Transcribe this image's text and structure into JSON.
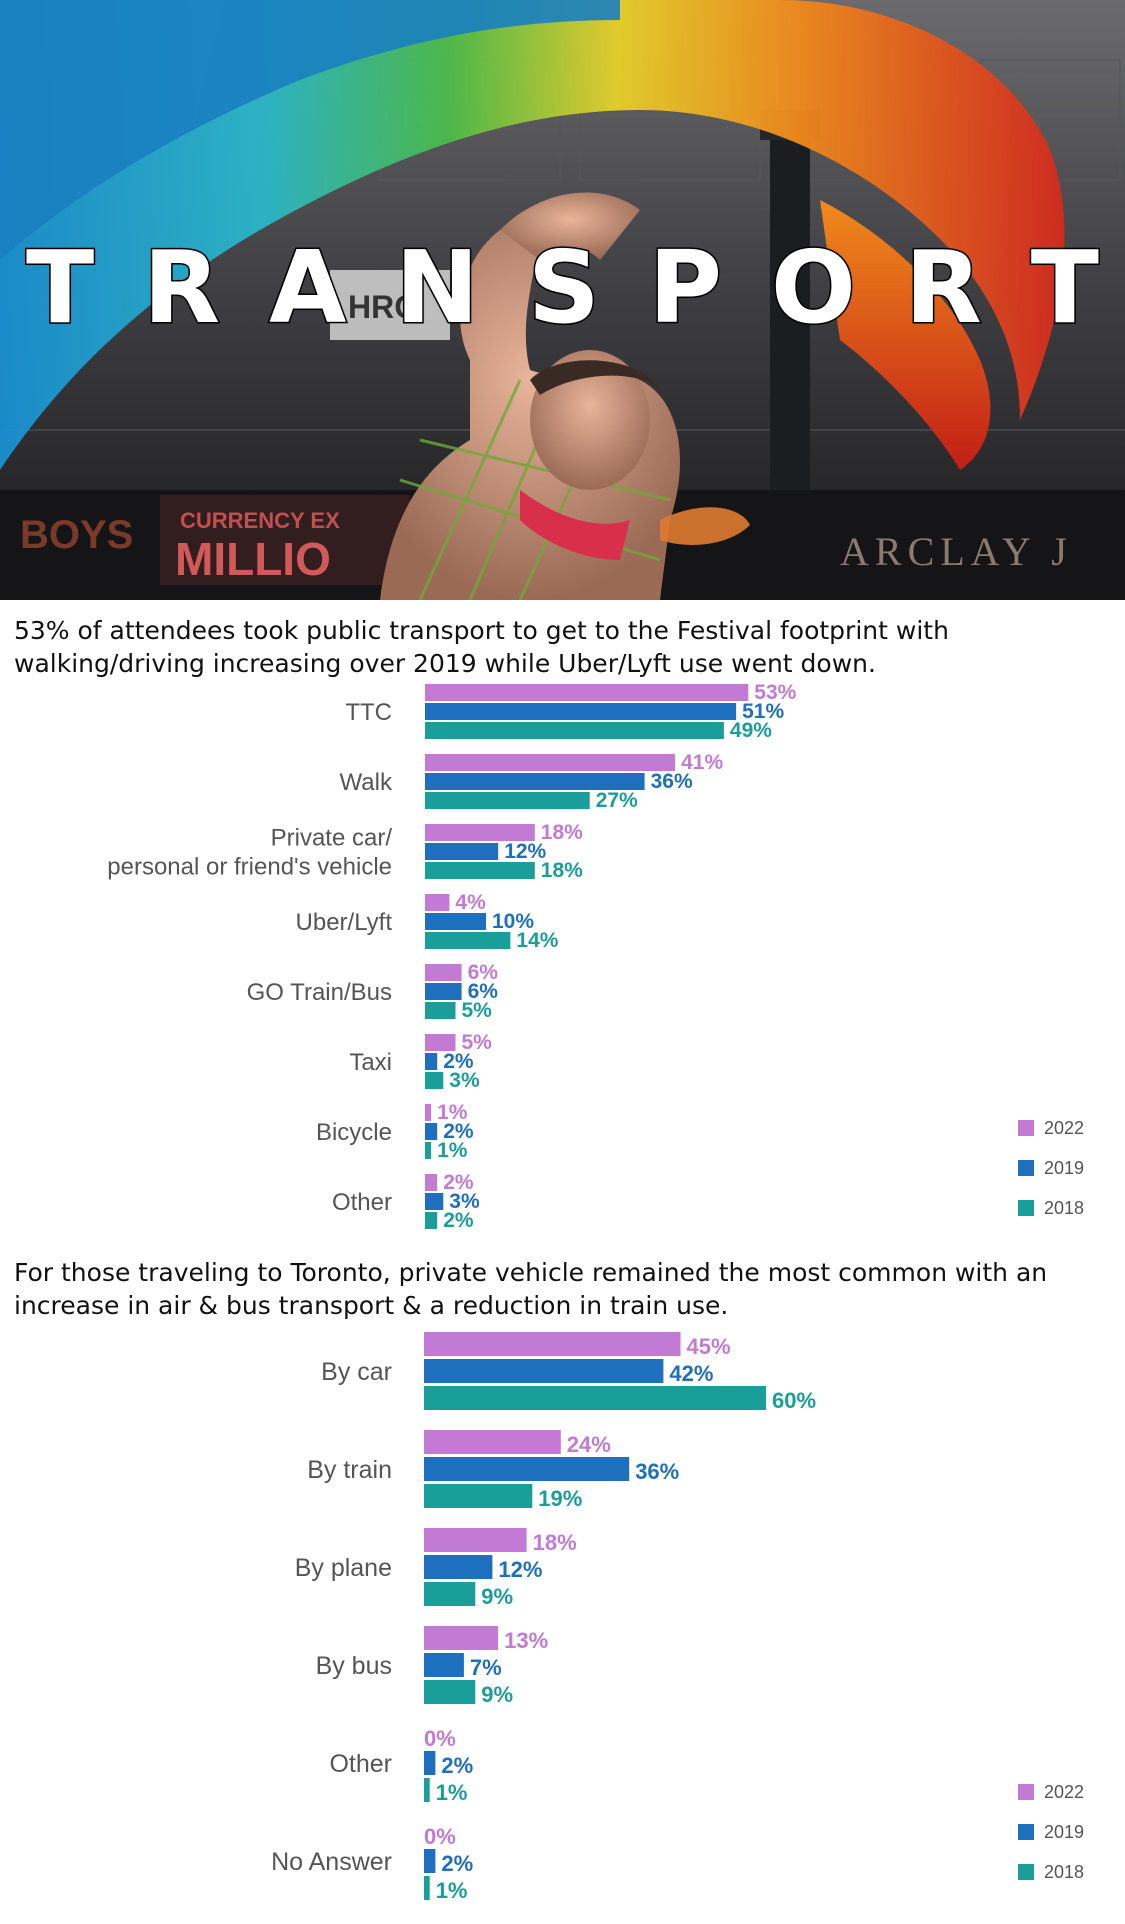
{
  "hero": {
    "title_letters": [
      "T",
      "R",
      "A",
      "N",
      "S",
      "P",
      "O",
      "R",
      "T"
    ],
    "sign_left": "BOYS",
    "sign_mid_top": "CURRENCY EX",
    "sign_mid": "MILLIO",
    "sign_brand": "HRO",
    "sign_right": "ARCLAY J"
  },
  "captions": {
    "first": "53% of attendees took public transport to get to the Festival footprint with walking/driving increasing over 2019 while Uber/Lyft use went down.",
    "second": "For those traveling to Toronto, private vehicle remained the most common with an increase in air & bus transport & a reduction in train use."
  },
  "colors": {
    "y2022": "#c27ad4",
    "y2019": "#1f6fbf",
    "y2018": "#1a9e9a",
    "label": "#555555",
    "caption": "#111111"
  },
  "chart_data": [
    {
      "type": "bar",
      "orientation": "horizontal",
      "categories": [
        [
          "TTC"
        ],
        [
          "Walk"
        ],
        [
          "Private car/",
          "personal or friend's vehicle"
        ],
        [
          "Uber/Lyft"
        ],
        [
          "GO Train/Bus"
        ],
        [
          "Taxi"
        ],
        [
          "Bicycle"
        ],
        [
          "Other"
        ]
      ],
      "series": [
        {
          "name": "2022",
          "color": "#c27ad4",
          "values": [
            53,
            41,
            18,
            4,
            6,
            5,
            1,
            2
          ]
        },
        {
          "name": "2019",
          "color": "#1f6fbf",
          "values": [
            51,
            36,
            12,
            10,
            6,
            2,
            2,
            3
          ]
        },
        {
          "name": "2018",
          "color": "#1a9e9a",
          "values": [
            49,
            27,
            18,
            14,
            5,
            3,
            1,
            2
          ]
        }
      ],
      "value_suffix": "%",
      "legend_position": "bottom-right",
      "xlim": [
        0,
        100
      ]
    },
    {
      "type": "bar",
      "orientation": "horizontal",
      "categories": [
        [
          "By car"
        ],
        [
          "By train"
        ],
        [
          "By plane"
        ],
        [
          "By bus"
        ],
        [
          "Other"
        ],
        [
          "No Answer"
        ]
      ],
      "series": [
        {
          "name": "2022",
          "color": "#c27ad4",
          "values": [
            45,
            24,
            18,
            13,
            0,
            0
          ]
        },
        {
          "name": "2019",
          "color": "#1f6fbf",
          "values": [
            42,
            36,
            12,
            7,
            2,
            2
          ]
        },
        {
          "name": "2018",
          "color": "#1a9e9a",
          "values": [
            60,
            19,
            9,
            9,
            1,
            1
          ]
        }
      ],
      "value_suffix": "%",
      "legend_position": "bottom-right",
      "xlim": [
        0,
        100
      ]
    }
  ]
}
